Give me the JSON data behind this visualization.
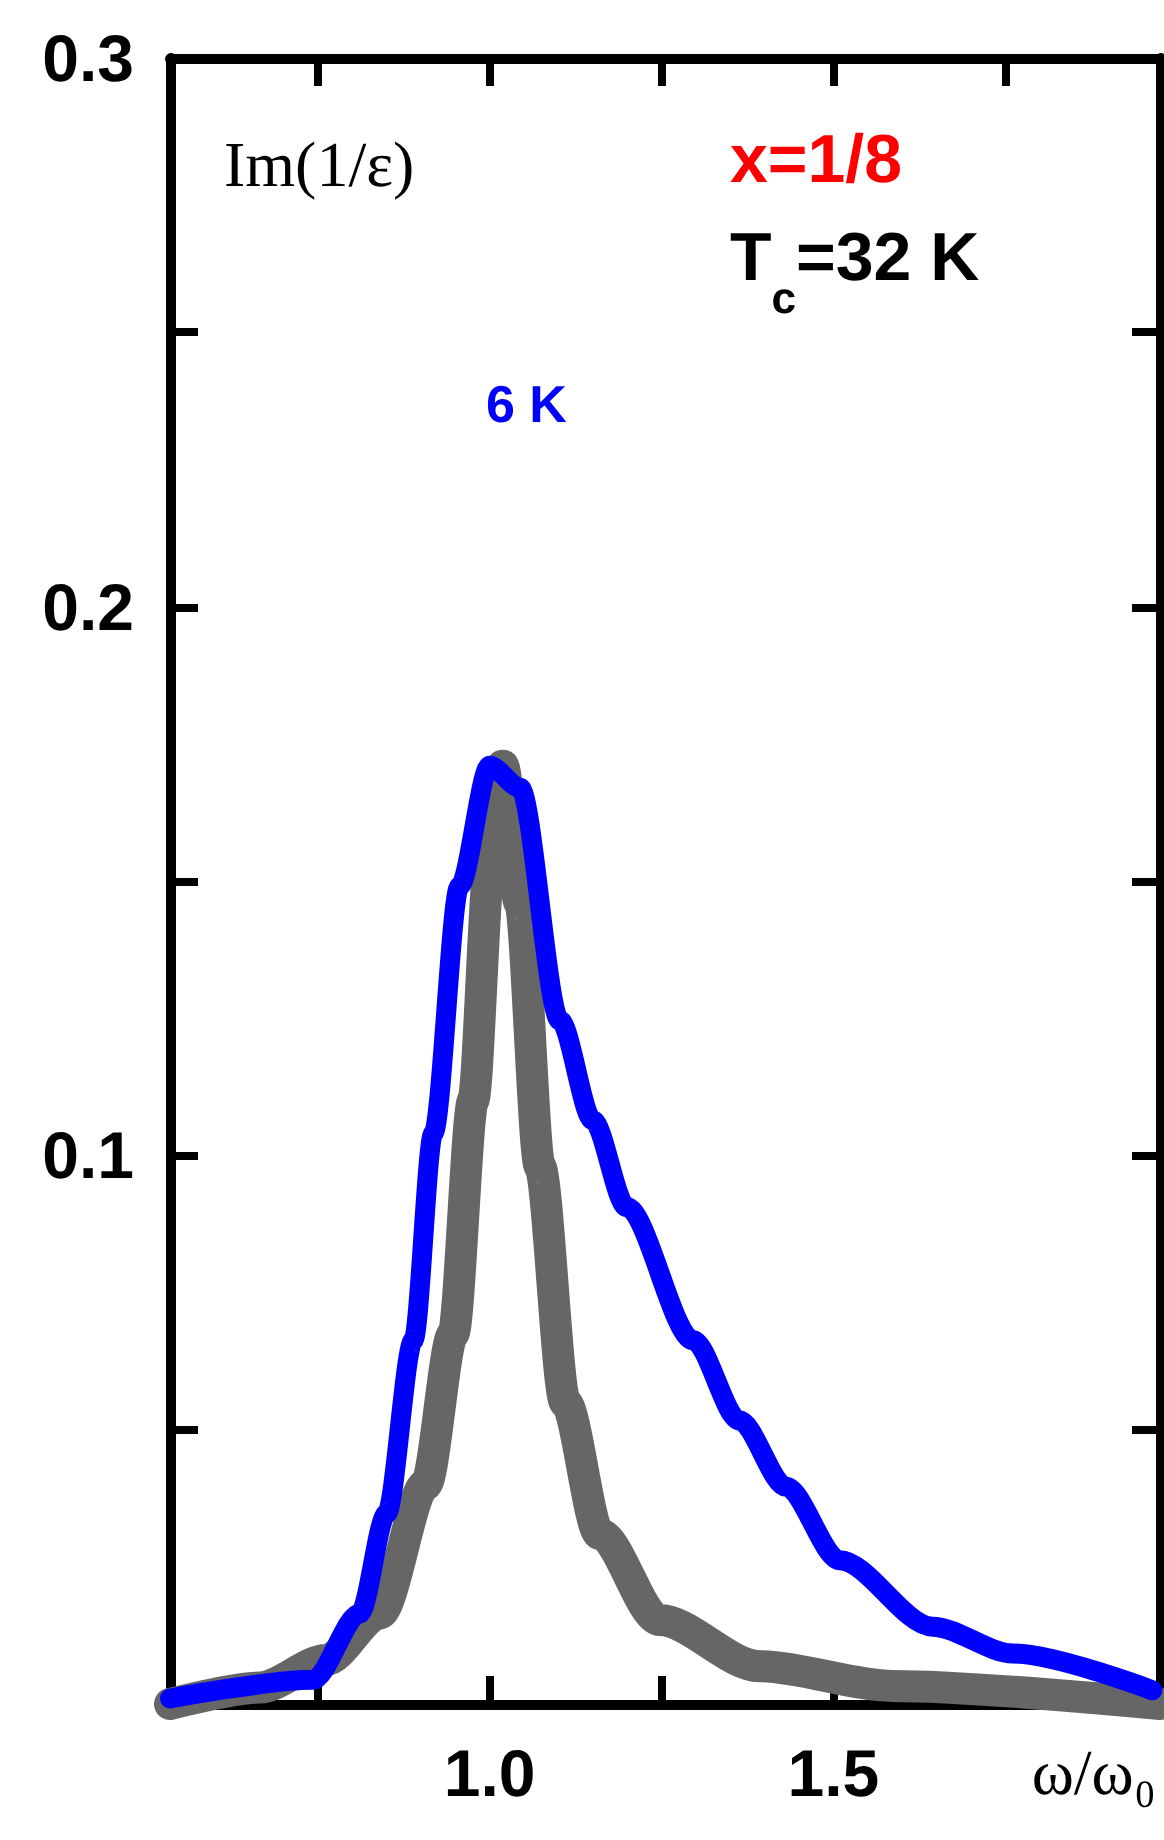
{
  "chart_data": {
    "type": "line",
    "xlabel": "ω/ω₀",
    "xlim": [
      0.535,
      1.975
    ],
    "xticks": [
      {
        "value": 0.75,
        "label": null
      },
      {
        "value": 1.0,
        "label": "1.0"
      },
      {
        "value": 1.25,
        "label": null
      },
      {
        "value": 1.5,
        "label": "1.5"
      },
      {
        "value": 1.75,
        "label": null
      }
    ],
    "ylim": [
      0,
      0.3
    ],
    "yticks": [
      {
        "value": 0.05,
        "label": null
      },
      0.1,
      {
        "value": 0.15,
        "label": null
      },
      0.2,
      {
        "value": 0.25,
        "label": null
      },
      0.3
    ],
    "series": [
      {
        "color": "#666666",
        "x": [
          0.535,
          0.666,
          0.762,
          0.84,
          0.907,
          0.947,
          0.976,
          1.0,
          1.019,
          1.044,
          1.073,
          1.11,
          1.16,
          1.247,
          1.392,
          1.586,
          1.975
        ],
        "values": [
          0.0,
          0.003,
          0.008,
          0.0165,
          0.04,
          0.0675,
          0.11,
          0.153,
          0.171,
          0.146,
          0.098,
          0.055,
          0.031,
          0.0153,
          0.0069,
          0.0033,
          0.0
        ]
      },
      {
        "name": "6 K",
        "color": "#0000ff",
        "x": [
          0.535,
          0.743,
          0.811,
          0.85,
          0.889,
          0.918,
          0.956,
          1.0,
          1.044,
          1.102,
          1.15,
          1.199,
          1.296,
          1.363,
          1.431,
          1.509,
          1.644,
          1.761,
          1.964
        ],
        "values": [
          0.001,
          0.0044,
          0.0165,
          0.0347,
          0.0663,
          0.104,
          0.149,
          0.171,
          0.167,
          0.1246,
          0.1064,
          0.0906,
          0.0663,
          0.0517,
          0.0396,
          0.0262,
          0.0141,
          0.0092,
          0.0025
        ]
      }
    ],
    "legend": "top left",
    "annotations": [
      "Im(1/ε)",
      "x=1/8",
      "T$_{c}$=32 K"
    ]
  }
}
